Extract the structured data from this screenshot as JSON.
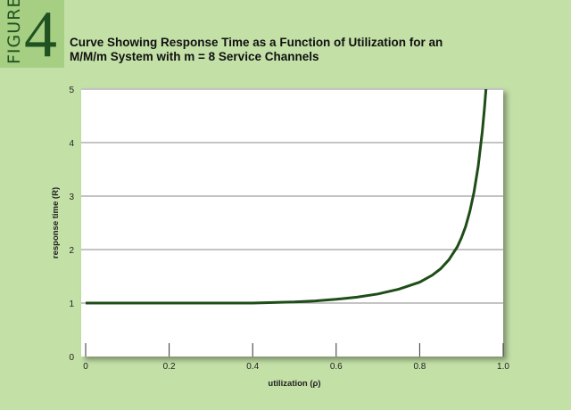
{
  "figure": {
    "word": "FIGURE",
    "number": "4"
  },
  "title_lines": [
    "Curve Showing Response Time as a Function of Utilization for an",
    "M/M/m System with m = 8 Service Channels"
  ],
  "colors": {
    "background": "#c3e0a7",
    "badge": "#a6cf83",
    "badge_text": "#1f5220",
    "plot_area": "#ffffff",
    "grid": "#888888",
    "curve": "#1e4d17"
  },
  "chart_data": {
    "type": "line",
    "title": "Curve Showing Response Time as a Function of Utilization for an M/M/m System with m = 8 Service Channels",
    "xlabel": "utilization (ρ)",
    "ylabel": "response time (R)",
    "xlim": [
      0,
      1.0
    ],
    "ylim": [
      0,
      5
    ],
    "x_ticks": [
      "0",
      "0.2",
      "0.4",
      "0.6",
      "0.8",
      "1.0"
    ],
    "y_ticks": [
      "0",
      "1",
      "2",
      "3",
      "4",
      "5"
    ],
    "grid": "horizontal",
    "series": [
      {
        "x": [
          0.0,
          0.1,
          0.2,
          0.3,
          0.4,
          0.45,
          0.5,
          0.55,
          0.6,
          0.65,
          0.7,
          0.75,
          0.8,
          0.83,
          0.85,
          0.87,
          0.89,
          0.9,
          0.91,
          0.92,
          0.93,
          0.94,
          0.95,
          0.955,
          0.96,
          0.965
        ],
        "y": [
          1.0,
          1.0,
          1.0,
          1.0,
          1.0,
          1.01,
          1.02,
          1.04,
          1.07,
          1.11,
          1.17,
          1.26,
          1.39,
          1.52,
          1.64,
          1.81,
          2.05,
          2.22,
          2.43,
          2.71,
          3.07,
          3.55,
          4.21,
          4.63,
          5.12,
          5.7
        ]
      }
    ]
  }
}
